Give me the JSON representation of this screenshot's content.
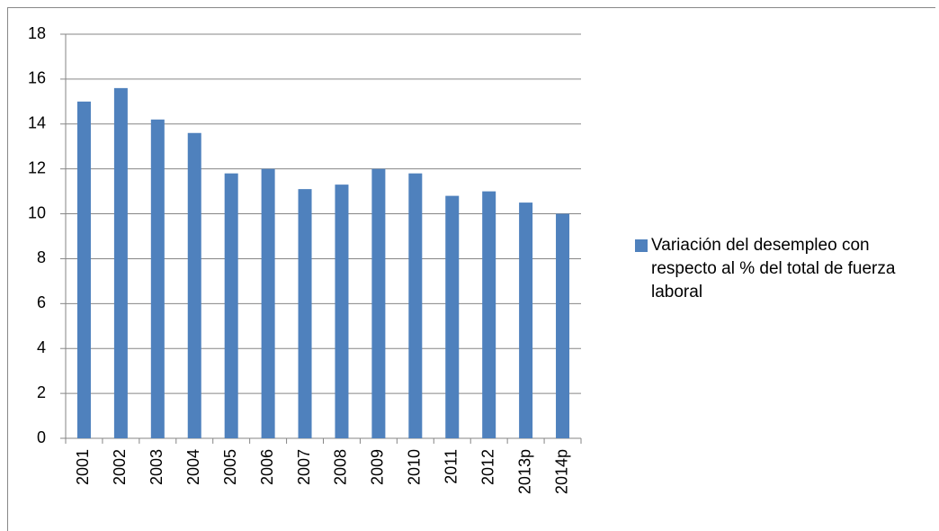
{
  "chart_data": {
    "type": "bar",
    "categories": [
      "2001",
      "2002",
      "2003",
      "2004",
      "2005",
      "2006",
      "2007",
      "2008",
      "2009",
      "2010",
      "2011",
      "2012",
      "2013p",
      "2014p"
    ],
    "series": [
      {
        "name": "Variación del desempleo con respecto al % del total de fuerza laboral",
        "color": "#4f81bd",
        "values": [
          15.0,
          15.6,
          14.2,
          13.6,
          11.8,
          12.0,
          11.1,
          11.3,
          12.0,
          11.8,
          10.8,
          11.0,
          10.5,
          10.0
        ]
      }
    ],
    "ylim": [
      0,
      18
    ],
    "yticks": [
      0,
      2,
      4,
      6,
      8,
      10,
      12,
      14,
      16,
      18
    ],
    "grid": true,
    "legend": "right"
  }
}
